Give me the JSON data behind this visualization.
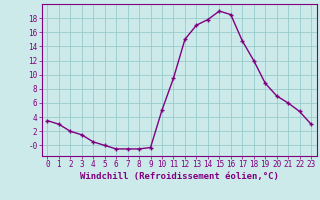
{
  "x": [
    0,
    1,
    2,
    3,
    4,
    5,
    6,
    7,
    8,
    9,
    10,
    11,
    12,
    13,
    14,
    15,
    16,
    17,
    18,
    19,
    20,
    21,
    22,
    23
  ],
  "y": [
    3.5,
    3.0,
    2.0,
    1.5,
    0.5,
    0.0,
    -0.5,
    -0.5,
    -0.5,
    -0.3,
    5.0,
    9.5,
    15.0,
    17.0,
    17.8,
    19.0,
    18.5,
    14.8,
    12.0,
    8.8,
    7.0,
    6.0,
    4.8,
    3.0
  ],
  "line_color": "#800080",
  "marker": "+",
  "marker_size": 3.5,
  "marker_lw": 1.0,
  "bg_color": "#cceaea",
  "grid_color": "#99cccc",
  "xlabel": "Windchill (Refroidissement éolien,°C)",
  "xlim_min": -0.5,
  "xlim_max": 23.5,
  "ylim_min": -1.5,
  "ylim_max": 20.0,
  "yticks": [
    0,
    2,
    4,
    6,
    8,
    10,
    12,
    14,
    16,
    18
  ],
  "ytick_labels": [
    "-0",
    "2",
    "4",
    "6",
    "8",
    "10",
    "12",
    "14",
    "16",
    "18"
  ],
  "xticks": [
    0,
    1,
    2,
    3,
    4,
    5,
    6,
    7,
    8,
    9,
    10,
    11,
    12,
    13,
    14,
    15,
    16,
    17,
    18,
    19,
    20,
    21,
    22,
    23
  ],
  "label_fontsize": 6.5,
  "tick_fontsize": 5.5,
  "line_width": 1.0
}
